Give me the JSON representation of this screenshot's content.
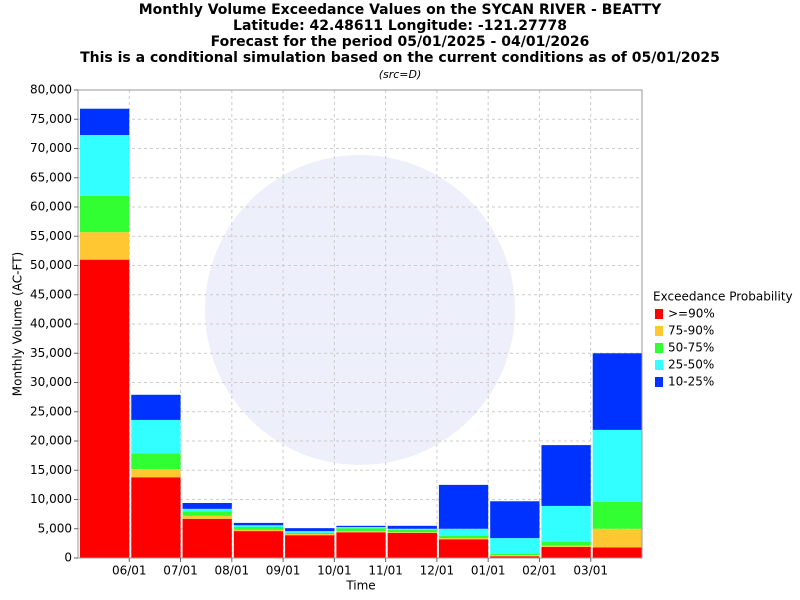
{
  "chart_data": {
    "type": "stacked_bar",
    "title_lines": [
      "Monthly Volume Exceedance Values on the SYCAN RIVER - BEATTY",
      "Latitude: 42.48611 Longitude: -121.27778",
      "Forecast for the period 05/01/2025 - 04/01/2026",
      "This is a conditional simulation based on the current conditions as of 05/01/2025"
    ],
    "subtitle": "(src=D)",
    "x_label": "Time",
    "y_label": "Monthly Volume (AC-FT)",
    "legend_title": "Exceedance Probability",
    "categories": [
      null,
      null,
      null,
      null,
      null,
      null,
      null,
      null,
      null,
      null,
      null
    ],
    "xtick_labels": [
      "06/01",
      "07/01",
      "08/01",
      "09/01",
      "10/01",
      "11/01",
      "12/01",
      "01/01",
      "02/01",
      "03/01"
    ],
    "series": [
      {
        "name": ">=90%",
        "color": "#ff0000",
        "values": [
          51000,
          13800,
          6700,
          4600,
          3900,
          4400,
          4300,
          3200,
          300,
          1900,
          1800
        ]
      },
      {
        "name": "75-90%",
        "color": "#ffc832",
        "values": [
          4700,
          1400,
          500,
          200,
          200,
          200,
          100,
          200,
          200,
          200,
          3200
        ]
      },
      {
        "name": "50-75%",
        "color": "#32ff32",
        "values": [
          6200,
          2700,
          800,
          500,
          200,
          500,
          400,
          400,
          200,
          700,
          4600
        ]
      },
      {
        "name": "25-50%",
        "color": "#32ffff",
        "values": [
          10400,
          5700,
          400,
          300,
          300,
          200,
          200,
          1200,
          2700,
          6100,
          12300
        ]
      },
      {
        "name": "10-25%",
        "color": "#0032ff",
        "values": [
          4500,
          4300,
          1000,
          400,
          500,
          200,
          500,
          7500,
          6300,
          10400,
          13100
        ]
      }
    ],
    "ylim": [
      0,
      80000
    ],
    "yticks": [
      0,
      {
        "value": 5000,
        "label": "5,000"
      },
      {
        "value": 10000,
        "label": "10,000"
      },
      {
        "value": 15000,
        "label": "15,000"
      },
      {
        "value": 20000,
        "label": "20,000"
      },
      {
        "value": 25000,
        "label": "25,000"
      },
      {
        "value": 30000,
        "label": "30,000"
      },
      {
        "value": 35000,
        "label": "35,000"
      },
      {
        "value": 40000,
        "label": "40,000"
      },
      {
        "value": 45000,
        "label": "45,000"
      },
      {
        "value": 50000,
        "label": "50,000"
      },
      {
        "value": 55000,
        "label": "55,000"
      },
      {
        "value": 60000,
        "label": "60,000"
      },
      {
        "value": 65000,
        "label": "65,000"
      },
      {
        "value": 70000,
        "label": "70,000"
      },
      {
        "value": 75000,
        "label": "75,000"
      },
      {
        "value": 80000,
        "label": "80,000"
      }
    ],
    "grid": true
  }
}
